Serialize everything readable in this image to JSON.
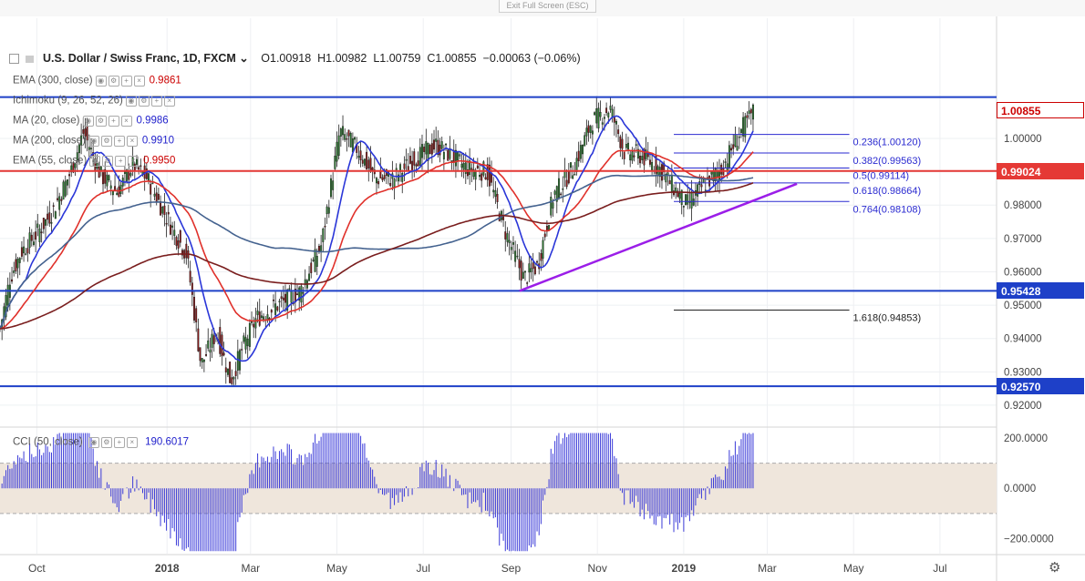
{
  "window": {
    "exit_fullscreen": "Exit Full Screen (ESC)"
  },
  "header": {
    "symbol": "U.S. Dollar / Swiss Franc, 1D, FXCM",
    "open": "O1.00918",
    "high": "H1.00982",
    "low": "L1.00759",
    "close": "C1.00855",
    "change": "−0.00063 (−0.06%)"
  },
  "indicators": [
    {
      "label": "EMA (300, close)",
      "value": "0.9861",
      "color": "#cc0000"
    },
    {
      "label": "Ichimoku (9, 26, 52, 26)",
      "value": "",
      "color": "#2962ff"
    },
    {
      "label": "MA (20, close)",
      "value": "0.9986",
      "color": "#2222cc"
    },
    {
      "label": "MA (200, close)",
      "value": "0.9910",
      "color": "#2222cc"
    },
    {
      "label": "EMA (55, close)",
      "value": "0.9950",
      "color": "#cc0000"
    }
  ],
  "cci": {
    "label": "CCI (50, close)",
    "value": "190.6017",
    "ticks": [
      "200.0000",
      "0.0000",
      "−200.0000"
    ]
  },
  "price_tags": [
    {
      "label": "1.00855",
      "bg": "#ffffff",
      "fg": "#cc0000",
      "border": "#cc0000"
    },
    {
      "label": "0.99024",
      "bg": "#e53935",
      "fg": "#ffffff",
      "border": "#e53935"
    },
    {
      "label": "0.95428",
      "bg": "#1e40c8",
      "fg": "#ffffff",
      "border": "#1e40c8"
    },
    {
      "label": "0.92570",
      "bg": "#1e40c8",
      "fg": "#ffffff",
      "border": "#1e40c8"
    }
  ],
  "chart_data": {
    "type": "candlestick",
    "y_ticks": [
      "1.00000",
      "0.99000",
      "0.98000",
      "0.97000",
      "0.96000",
      "0.95000",
      "0.94000",
      "0.93000",
      "0.92000"
    ],
    "y_tick_values": [
      1.0,
      0.99,
      0.98,
      0.97,
      0.96,
      0.95,
      0.94,
      0.93,
      0.92
    ],
    "ylim": [
      0.9137,
      1.0224
    ],
    "x_labels": [
      "Oct",
      "2018",
      "Mar",
      "May",
      "Jul",
      "Sep",
      "Nov",
      "2019",
      "Mar",
      "May",
      "Jul"
    ],
    "x_label_positions": [
      "2017-10-01",
      "2018-01-01",
      "2018-03-01",
      "2018-05-01",
      "2018-07-01",
      "2018-09-01",
      "2018-11-01",
      "2019-01-01",
      "2019-03-01",
      "2019-05-01",
      "2019-07-01"
    ],
    "date_range": [
      "2017-09-05",
      "2019-08-10"
    ],
    "close_path": [
      [
        "2017-09-05",
        0.943
      ],
      [
        "2017-09-12",
        0.958
      ],
      [
        "2017-09-20",
        0.966
      ],
      [
        "2017-10-02",
        0.972
      ],
      [
        "2017-10-12",
        0.978
      ],
      [
        "2017-10-25",
        0.99
      ],
      [
        "2017-11-03",
        1.002
      ],
      [
        "2017-11-15",
        0.989
      ],
      [
        "2017-11-27",
        0.984
      ],
      [
        "2017-12-08",
        0.992
      ],
      [
        "2017-12-18",
        0.988
      ],
      [
        "2018-01-01",
        0.976
      ],
      [
        "2018-01-15",
        0.965
      ],
      [
        "2018-01-25",
        0.932
      ],
      [
        "2018-02-05",
        0.942
      ],
      [
        "2018-02-15",
        0.927
      ],
      [
        "2018-02-22",
        0.936
      ],
      [
        "2018-03-05",
        0.946
      ],
      [
        "2018-03-20",
        0.95
      ],
      [
        "2018-04-05",
        0.954
      ],
      [
        "2018-04-20",
        0.968
      ],
      [
        "2018-05-03",
        1.002
      ],
      [
        "2018-05-15",
        0.997
      ],
      [
        "2018-05-28",
        0.988
      ],
      [
        "2018-06-10",
        0.988
      ],
      [
        "2018-06-25",
        0.994
      ],
      [
        "2018-07-10",
        0.998
      ],
      [
        "2018-07-20",
        0.995
      ],
      [
        "2018-08-01",
        0.991
      ],
      [
        "2018-08-15",
        0.99
      ],
      [
        "2018-08-28",
        0.972
      ],
      [
        "2018-09-10",
        0.958
      ],
      [
        "2018-09-20",
        0.962
      ],
      [
        "2018-10-01",
        0.983
      ],
      [
        "2018-10-15",
        0.991
      ],
      [
        "2018-10-28",
        1.005
      ],
      [
        "2018-11-10",
        1.009
      ],
      [
        "2018-11-20",
        0.996
      ],
      [
        "2018-12-01",
        0.995
      ],
      [
        "2018-12-15",
        0.991
      ],
      [
        "2019-01-03",
        0.98
      ],
      [
        "2019-01-15",
        0.986
      ],
      [
        "2019-01-28",
        0.991
      ],
      [
        "2019-02-10",
        1.002
      ],
      [
        "2019-02-20",
        1.0086
      ]
    ],
    "lines": [
      {
        "name": "support-top",
        "value": 1.0124,
        "color": "#1e40c8"
      },
      {
        "name": "pivot",
        "value": 0.99024,
        "color": "#e53935"
      },
      {
        "name": "support-mid",
        "value": 0.95428,
        "color": "#1e40c8"
      },
      {
        "name": "support-low",
        "value": 0.9257,
        "color": "#1e40c8"
      }
    ],
    "trendline": [
      [
        "2018-09-07",
        0.95428
      ],
      [
        "2019-03-22",
        0.9864
      ]
    ],
    "fibonacci": [
      {
        "label": "0.236(1.00120)",
        "value": 1.0012
      },
      {
        "label": "0.382(0.99563)",
        "value": 0.99563
      },
      {
        "label": "0.5(0.99114)",
        "value": 0.99114
      },
      {
        "label": "0.618(0.98664)",
        "value": 0.98664
      },
      {
        "label": "0.764(0.98108)",
        "value": 0.98108
      },
      {
        "label": "1.618(0.94853)",
        "value": 0.94853
      }
    ],
    "cci_range": [
      -260,
      240
    ]
  }
}
